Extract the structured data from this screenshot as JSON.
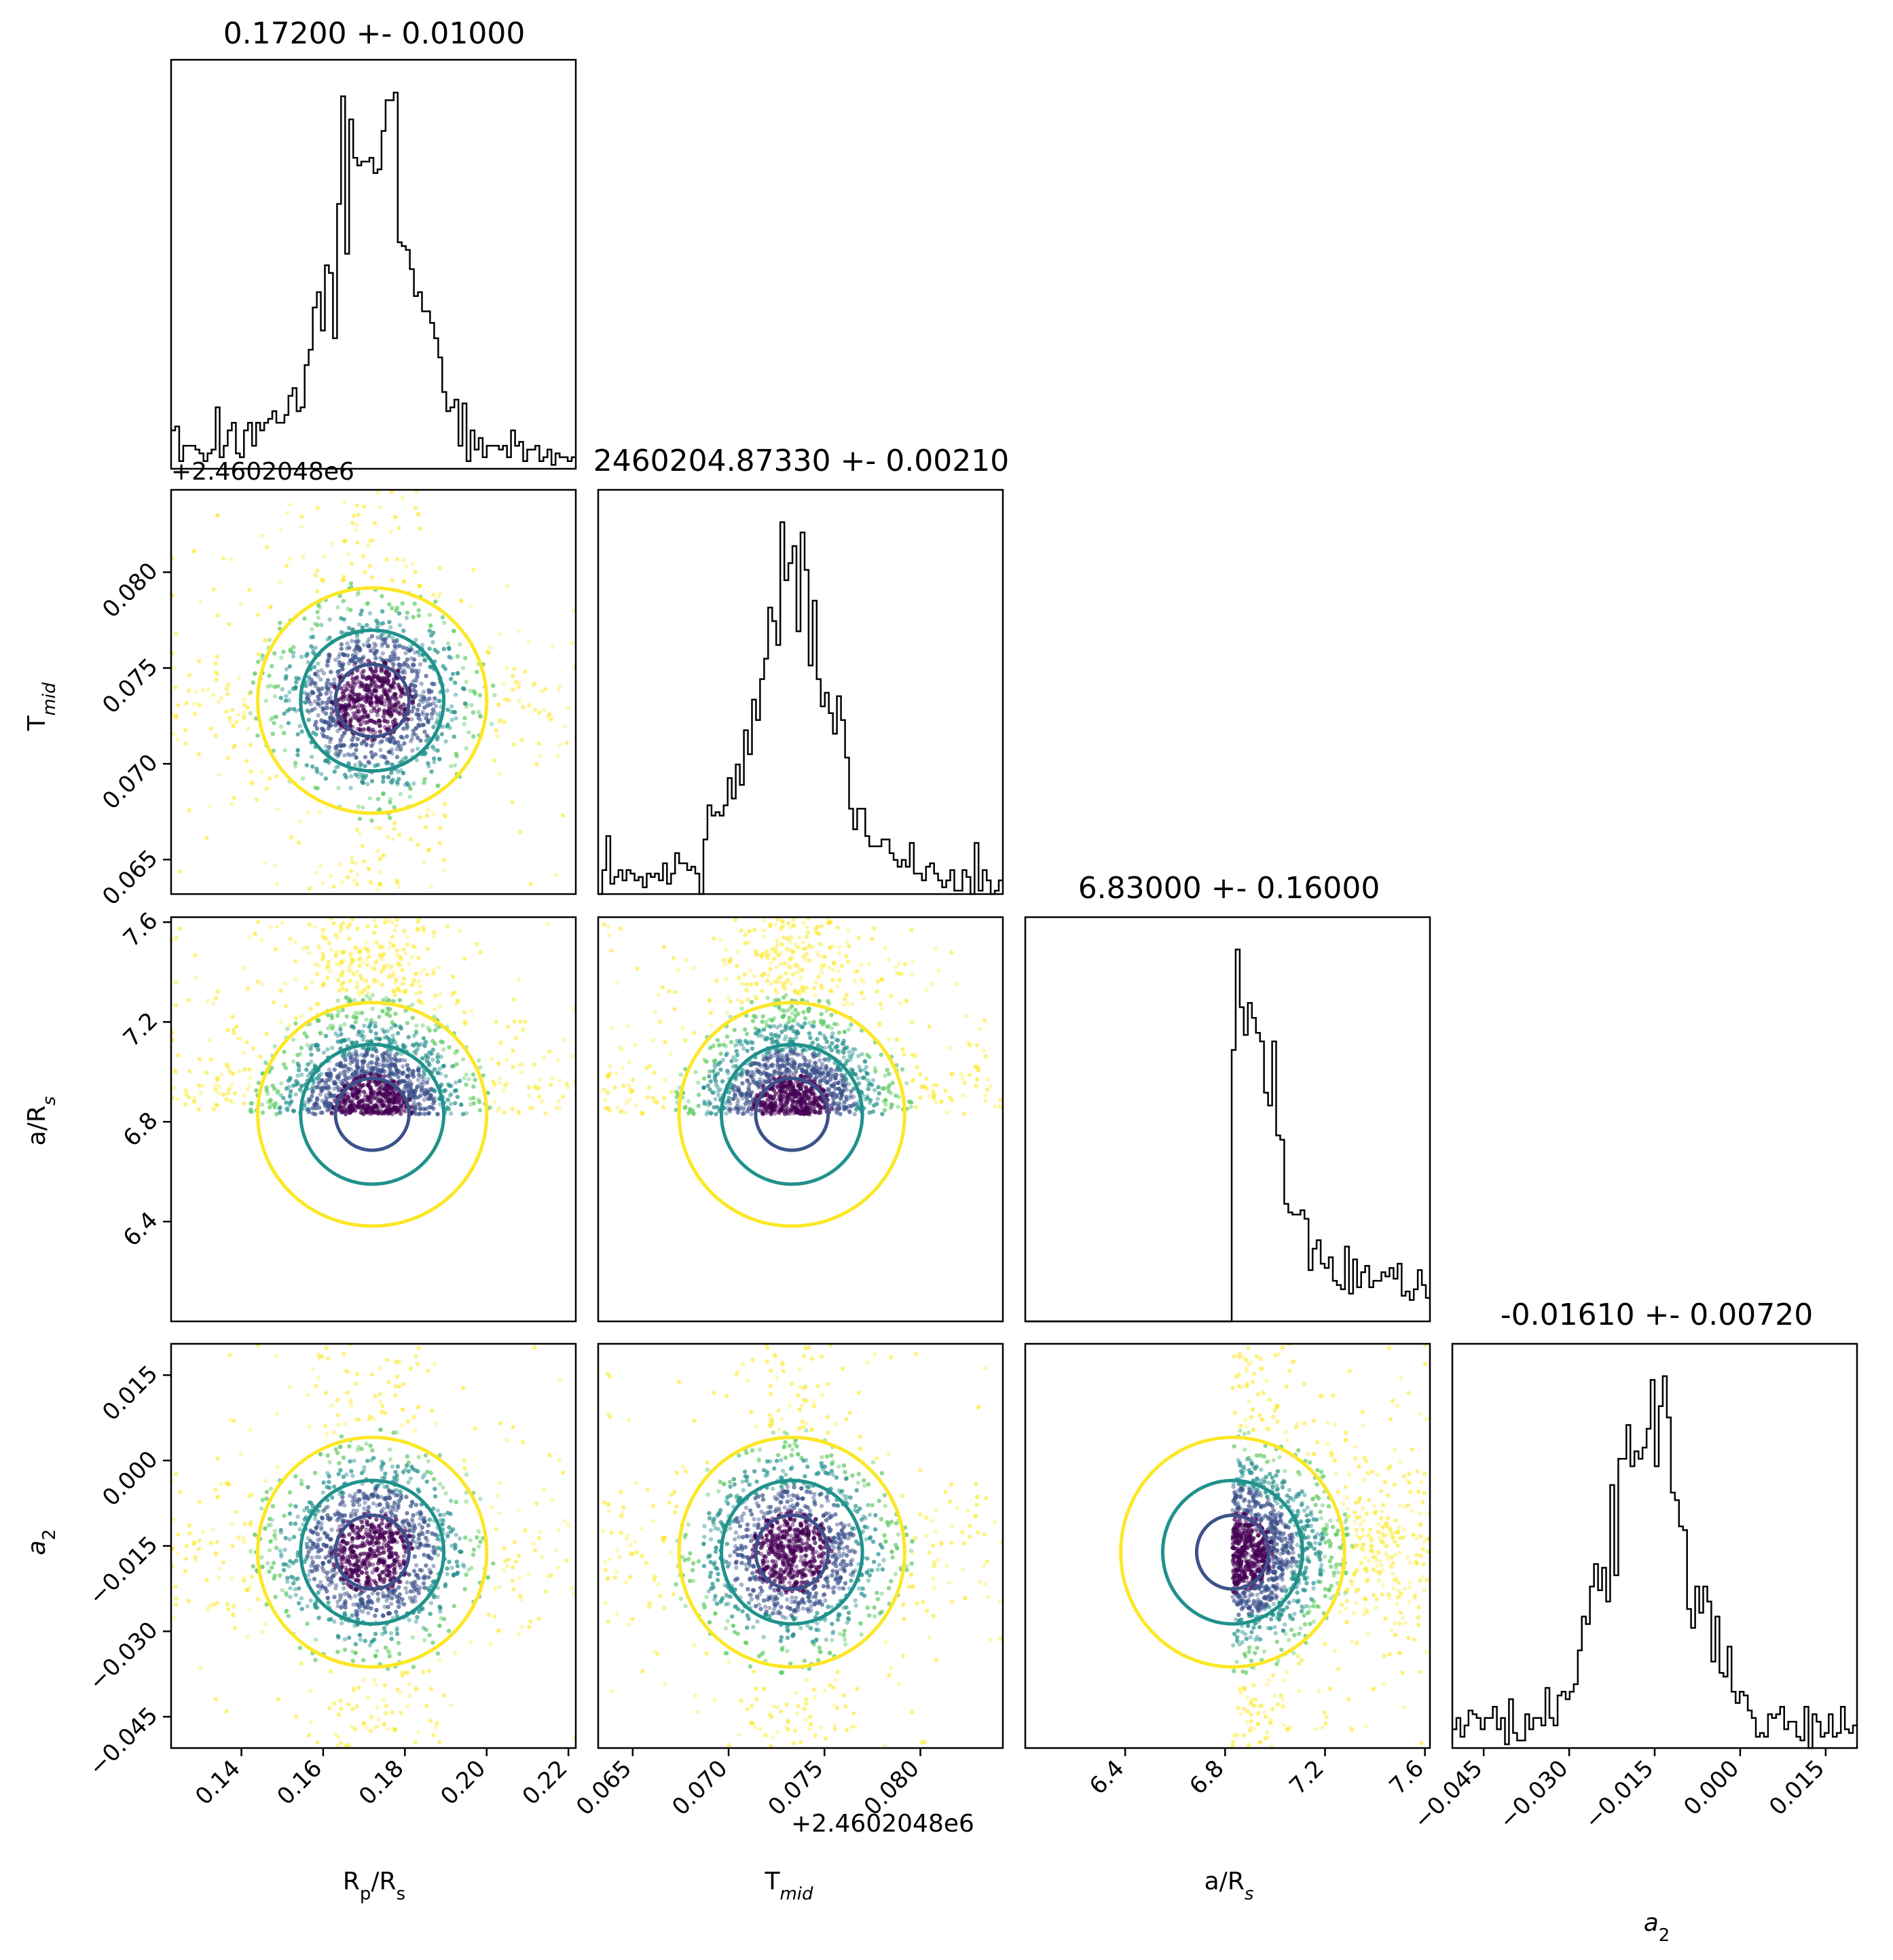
{
  "chart_data": {
    "type": "scatter",
    "subtype": "corner",
    "parameters": [
      "Rp/Rs",
      "Tmid",
      "a/Rs",
      "a2"
    ],
    "axis_labels": {
      "rp": {
        "base": "R",
        "sub": "p",
        "rest": "/R",
        "sub2": "s"
      },
      "tmid": {
        "base": "T",
        "sub": "mid"
      },
      "ars": {
        "base": "a/R",
        "sub": "s"
      },
      "a2": {
        "base": "a",
        "sub": "2",
        "italic": true
      }
    },
    "titles": {
      "rp": "0.17200 +- 0.01000",
      "tmid": "2460204.87330 +- 0.00210",
      "ars": "6.83000 +- 0.16000",
      "a2": "-0.01610 +- 0.00720"
    },
    "tmid_offset_text": "+2.4602048e6",
    "ranges": {
      "rp": [
        0.1228,
        0.2218
      ],
      "tmid": [
        0.0632,
        0.0843
      ],
      "ars": [
        6.0,
        7.62
      ],
      "a2": [
        -0.0505,
        0.0205
      ]
    },
    "ticks": {
      "rp": {
        "values": [
          0.14,
          0.16,
          0.18,
          0.2,
          0.22
        ],
        "labels": [
          "0.14",
          "0.16",
          "0.18",
          "0.20",
          "0.22"
        ]
      },
      "tmid": {
        "values": [
          0.065,
          0.07,
          0.075,
          0.08
        ],
        "labels": [
          "0.065",
          "0.070",
          "0.075",
          "0.080"
        ]
      },
      "ars": {
        "values": [
          6.4,
          6.8,
          7.2,
          7.6
        ],
        "labels": [
          "6.4",
          "6.8",
          "7.2",
          "7.6"
        ]
      },
      "a2": {
        "values": [
          -0.045,
          -0.03,
          -0.015,
          0.0,
          0.015
        ],
        "labels": [
          "−0.045",
          "−0.030",
          "−0.015",
          "0.000",
          "0.015"
        ]
      }
    },
    "marginals": [
      {
        "param": "rp",
        "center": 0.172,
        "sigma": 0.01,
        "shape": "peaked-with-wide-tails"
      },
      {
        "param": "tmid",
        "center": 0.0733,
        "sigma": 0.0021,
        "shape": "peaked-with-wide-tails"
      },
      {
        "param": "ars",
        "center": 6.83,
        "sigma": 0.16,
        "shape": "truncated-below-6.83-long-upper-tail"
      },
      {
        "param": "a2",
        "center": -0.0161,
        "sigma": 0.0072,
        "shape": "peaked-with-wide-tails"
      }
    ],
    "contour_levels": [
      {
        "level": "inner",
        "color": "#3b528b"
      },
      {
        "level": "middle",
        "color": "#21918c"
      },
      {
        "level": "outer",
        "color": "#fde725"
      }
    ],
    "point_colormap": [
      "#440154",
      "#3b528b",
      "#21918c",
      "#5ec962",
      "#fde725"
    ],
    "histogram_color": "#000000",
    "grid": false,
    "legend": "none"
  }
}
